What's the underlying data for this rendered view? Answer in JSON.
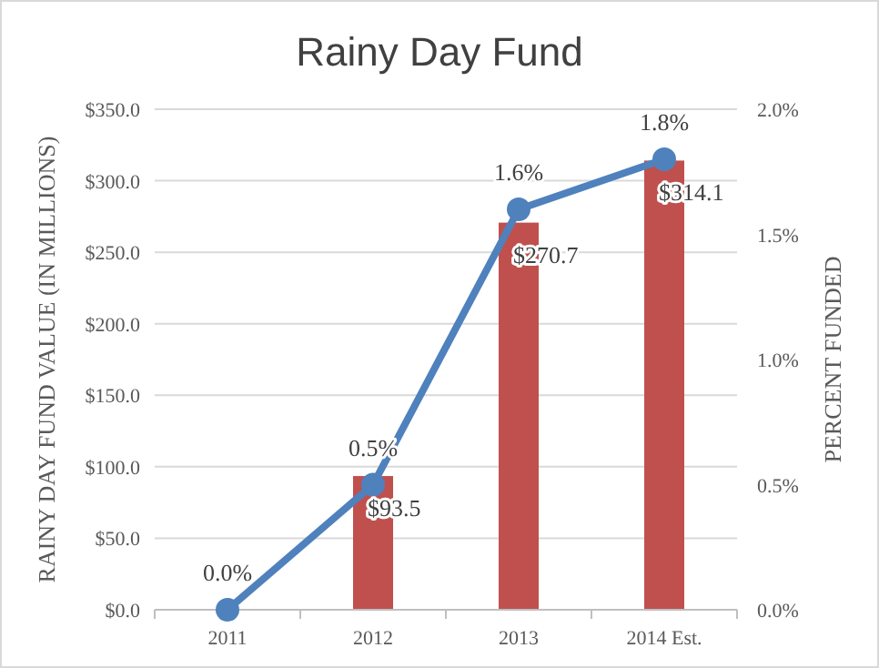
{
  "chart_data": {
    "type": "bar",
    "title": "Rainy Day Fund",
    "ylabel": "RAINY DAY FUND VALUE (IN MILLIONS)",
    "y2label": "PERCENT FUNDED",
    "categories": [
      "2011",
      "2012",
      "2013",
      "2014 Est."
    ],
    "series": [
      {
        "color": "#c0504d",
        "values": [
          null,
          93.5,
          270.7,
          314.1
        ],
        "value_labels": [
          null,
          "$93.5",
          "$270.7",
          "$314.1"
        ]
      },
      {
        "type": "line",
        "axis": "y2",
        "color": "#4f81bd",
        "marker": "circle",
        "values": [
          0.0,
          0.5,
          1.6,
          1.8
        ],
        "value_labels": [
          "0.0%",
          "0.5%",
          "1.6%",
          "1.8%"
        ]
      }
    ],
    "ylim": [
      0,
      350
    ],
    "yticks": [
      {
        "value": 0,
        "label": "$0.0"
      },
      {
        "value": 50,
        "label": "$50.0"
      },
      {
        "value": 100,
        "label": "$100.0"
      },
      {
        "value": 150,
        "label": "$150.0"
      },
      {
        "value": 200,
        "label": "$200.0"
      },
      {
        "value": 250,
        "label": "$250.0"
      },
      {
        "value": 300,
        "label": "$300.0"
      },
      {
        "value": 350,
        "label": "$350.0"
      }
    ],
    "y2lim": [
      0,
      2
    ],
    "y2ticks": [
      {
        "value": 0,
        "label": "0.0%"
      },
      {
        "value": 0.5,
        "label": "0.5%"
      },
      {
        "value": 1,
        "label": "1.0%"
      },
      {
        "value": 1.5,
        "label": "1.5%"
      },
      {
        "value": 2,
        "label": "2.0%"
      }
    ],
    "grid": "y"
  }
}
